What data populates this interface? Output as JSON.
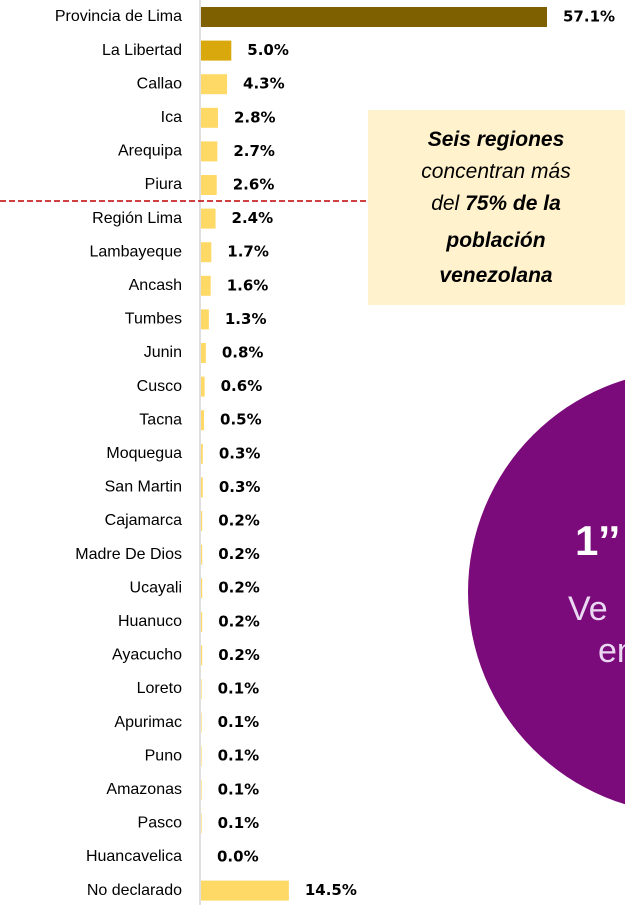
{
  "chart_data": {
    "type": "bar",
    "categories": [
      "Provincia de Lima",
      "La Libertad",
      "Callao",
      "Ica",
      "Arequipa",
      "Piura",
      "Región Lima",
      "Lambayeque",
      "Ancash",
      "Tumbes",
      "Junin",
      "Cusco",
      "Tacna",
      "Moquegua",
      "San Martin",
      "Cajamarca",
      "Madre De Dios",
      "Ucayali",
      "Huanuco",
      "Ayacucho",
      "Loreto",
      "Apurimac",
      "Puno",
      "Amazonas",
      "Pasco",
      "Huancavelica",
      "No declarado"
    ],
    "values": [
      57.1,
      5.0,
      4.3,
      2.8,
      2.7,
      2.6,
      2.4,
      1.7,
      1.6,
      1.3,
      0.8,
      0.6,
      0.5,
      0.3,
      0.3,
      0.2,
      0.2,
      0.2,
      0.2,
      0.2,
      0.1,
      0.1,
      0.1,
      0.1,
      0.1,
      0.0,
      14.5
    ],
    "value_labels": [
      "57.1%",
      "5.0%",
      "4.3%",
      "2.8%",
      "2.7%",
      "2.6%",
      "2.4%",
      "1.7%",
      "1.6%",
      "1.3%",
      "0.8%",
      "0.6%",
      "0.5%",
      "0.3%",
      "0.3%",
      "0.2%",
      "0.2%",
      "0.2%",
      "0.2%",
      "0.2%",
      "0.1%",
      "0.1%",
      "0.1%",
      "0.1%",
      "0.1%",
      "0.0%",
      "14.5%"
    ],
    "colors": [
      "#7f6000",
      "#d9a80c",
      "#ffd966",
      "#ffd966",
      "#ffd966",
      "#ffd966",
      "#ffd966",
      "#ffd966",
      "#ffd966",
      "#ffd966",
      "#ffd966",
      "#ffd966",
      "#ffd966",
      "#ffd966",
      "#ffd966",
      "#ffd966",
      "#ffd966",
      "#ffd966",
      "#ffd966",
      "#ffd966",
      "#ffd966",
      "#ffd966",
      "#ffd966",
      "#ffd966",
      "#ffd966",
      "#ffd966",
      "#ffd966"
    ],
    "annotation": [
      "Seis regiones",
      "concentran más",
      "del ",
      "75% de la",
      "población",
      "venezolana"
    ],
    "callout": [
      "1’’",
      "Ve",
      "en"
    ]
  }
}
